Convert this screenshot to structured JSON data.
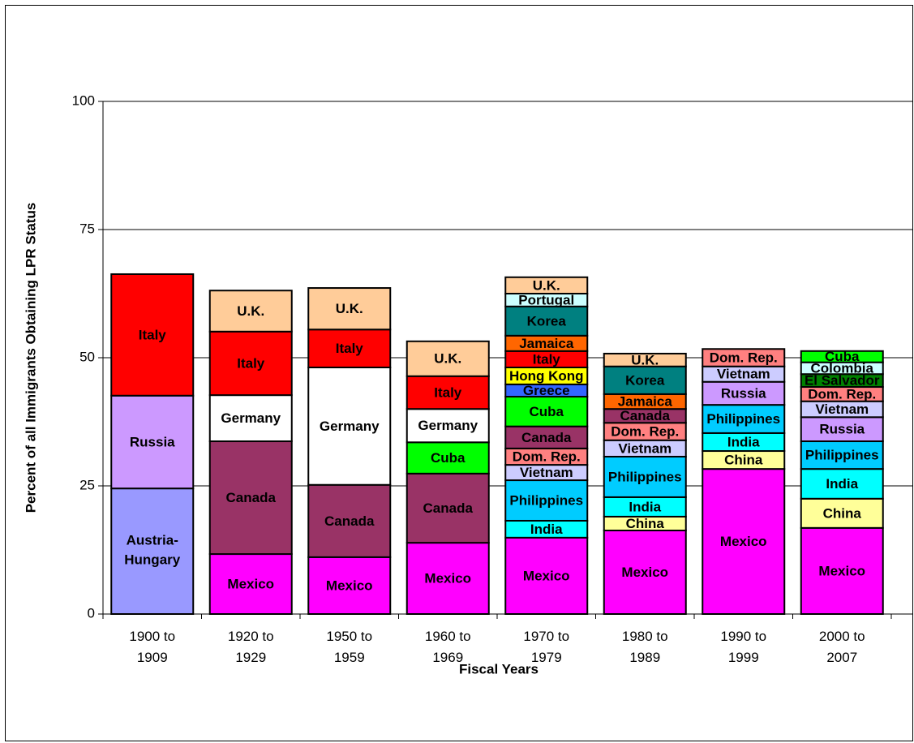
{
  "chart_data": {
    "type": "stacked_bar",
    "xlabel": "Fiscal Years",
    "ylabel": "Percent of all Immigrants Obtaining LPR Status",
    "ylim": [
      0,
      100
    ],
    "yticks": [
      0,
      25,
      50,
      75,
      100
    ],
    "grid": true,
    "categories": [
      "1900 to 1909",
      "1920 to 1929",
      "1950 to 1959",
      "1960 to 1969",
      "1970 to 1979",
      "1980 to 1989",
      "1990 to 1999",
      "2000 to 2007"
    ],
    "bars": [
      {
        "segments": [
          {
            "label": "Austria-Hungary",
            "color": "#9999ff",
            "value": 24.5
          },
          {
            "label": "Russia",
            "color": "#cc99ff",
            "value": 18.1
          },
          {
            "label": "Italy",
            "color": "#ff0000",
            "value": 23.7
          }
        ]
      },
      {
        "segments": [
          {
            "label": "Mexico",
            "color": "#ff00ff",
            "value": 11.7
          },
          {
            "label": "Canada",
            "color": "#993366",
            "value": 22.0
          },
          {
            "label": "Germany",
            "color": "#ffffff",
            "value": 9.0
          },
          {
            "label": "Italy",
            "color": "#ff0000",
            "value": 12.4
          },
          {
            "label": "U.K.",
            "color": "#ffcc99",
            "value": 8.0
          }
        ]
      },
      {
        "segments": [
          {
            "label": "Mexico",
            "color": "#ff00ff",
            "value": 11.1
          },
          {
            "label": "Canada",
            "color": "#993366",
            "value": 14.1
          },
          {
            "label": "Germany",
            "color": "#ffffff",
            "value": 22.9
          },
          {
            "label": "Italy",
            "color": "#ff0000",
            "value": 7.4
          },
          {
            "label": "U.K.",
            "color": "#ffcc99",
            "value": 8.1
          }
        ]
      },
      {
        "segments": [
          {
            "label": "Mexico",
            "color": "#ff00ff",
            "value": 13.9
          },
          {
            "label": "Canada",
            "color": "#993366",
            "value": 13.5
          },
          {
            "label": "Cuba",
            "color": "#00ff00",
            "value": 6.1
          },
          {
            "label": "Germany",
            "color": "#ffffff",
            "value": 6.5
          },
          {
            "label": "Italy",
            "color": "#ff0000",
            "value": 6.4
          },
          {
            "label": "U.K.",
            "color": "#ffcc99",
            "value": 6.8
          }
        ]
      },
      {
        "segments": [
          {
            "label": "Mexico",
            "color": "#ff00ff",
            "value": 14.9
          },
          {
            "label": "India",
            "color": "#00ffff",
            "value": 3.3
          },
          {
            "label": "Philippines",
            "color": "#00ccff",
            "value": 7.9
          },
          {
            "label": "Vietnam",
            "color": "#ccccff",
            "value": 3.0
          },
          {
            "label": "Dom. Rep.",
            "color": "#ff8080",
            "value": 3.2
          },
          {
            "label": "Canada",
            "color": "#993366",
            "value": 4.3
          },
          {
            "label": "Cuba",
            "color": "#00ff00",
            "value": 5.8
          },
          {
            "label": "Greece",
            "color": "#3366ff",
            "value": 2.4
          },
          {
            "label": "Hong Kong",
            "color": "#ffff00",
            "value": 3.3
          },
          {
            "label": "Italy",
            "color": "#ff0000",
            "value": 3.2
          },
          {
            "label": "Jamaica",
            "color": "#ff6600",
            "value": 3.0
          },
          {
            "label": "Korea",
            "color": "#008080",
            "value": 5.7
          },
          {
            "label": "Portugal",
            "color": "#ccffff",
            "value": 2.5
          },
          {
            "label": "U.K.",
            "color": "#ffcc99",
            "value": 3.2
          }
        ]
      },
      {
        "segments": [
          {
            "label": "Mexico",
            "color": "#ff00ff",
            "value": 16.3
          },
          {
            "label": "China",
            "color": "#ffff99",
            "value": 2.7
          },
          {
            "label": "India",
            "color": "#00ffff",
            "value": 3.8
          },
          {
            "label": "Philippines",
            "color": "#00ccff",
            "value": 7.9
          },
          {
            "label": "Vietnam",
            "color": "#ccccff",
            "value": 3.2
          },
          {
            "label": "Dom. Rep.",
            "color": "#ff8080",
            "value": 3.4
          },
          {
            "label": "Canada",
            "color": "#993366",
            "value": 2.7
          },
          {
            "label": "Jamaica",
            "color": "#ff6600",
            "value": 2.9
          },
          {
            "label": "Korea",
            "color": "#008080",
            "value": 5.4
          },
          {
            "label": "U.K.",
            "color": "#ffcc99",
            "value": 2.5
          }
        ]
      },
      {
        "segments": [
          {
            "label": "Mexico",
            "color": "#ff00ff",
            "value": 28.3
          },
          {
            "label": "China",
            "color": "#ffff99",
            "value": 3.5
          },
          {
            "label": "India",
            "color": "#00ffff",
            "value": 3.5
          },
          {
            "label": "Philippines",
            "color": "#00ccff",
            "value": 5.5
          },
          {
            "label": "Russia",
            "color": "#cc99ff",
            "value": 4.5
          },
          {
            "label": "Vietnam",
            "color": "#ccccff",
            "value": 3.0
          },
          {
            "label": "Dom. Rep.",
            "color": "#ff8080",
            "value": 3.4
          }
        ]
      },
      {
        "segments": [
          {
            "label": "Mexico",
            "color": "#ff00ff",
            "value": 16.8
          },
          {
            "label": "China",
            "color": "#ffff99",
            "value": 5.7
          },
          {
            "label": "India",
            "color": "#00ffff",
            "value": 5.8
          },
          {
            "label": "Philippines",
            "color": "#00ccff",
            "value": 5.4
          },
          {
            "label": "Russia",
            "color": "#cc99ff",
            "value": 4.7
          },
          {
            "label": "Vietnam",
            "color": "#ccccff",
            "value": 3.1
          },
          {
            "label": "Dom. Rep.",
            "color": "#ff8080",
            "value": 2.8
          },
          {
            "label": "El Salvador",
            "color": "#008000",
            "value": 2.5
          },
          {
            "label": "Colombia",
            "color": "#ccffff",
            "value": 2.3
          },
          {
            "label": "Cuba",
            "color": "#00ff00",
            "value": 2.2
          }
        ]
      }
    ]
  }
}
